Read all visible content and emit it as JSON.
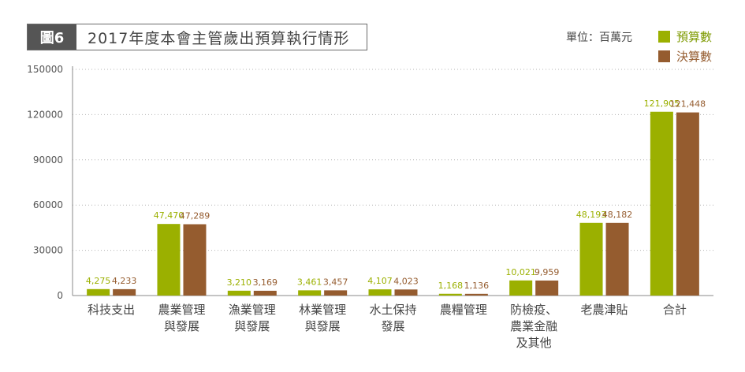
{
  "header": {
    "figure_tag": "圖6",
    "title": "2017年度本會主管歲出預算執行情形",
    "unit": "單位：百萬元"
  },
  "legend": [
    {
      "label": "預算數",
      "color": "#9bb000"
    },
    {
      "label": "決算數",
      "color": "#955c2f"
    }
  ],
  "chart_data": {
    "type": "bar",
    "title": "2017年度本會主管歲出預算執行情形",
    "ylabel": "單位：百萬元",
    "ylim": [
      0,
      150000
    ],
    "yticks": [
      "0",
      "30000",
      "60000",
      "90000",
      "120000",
      "150000"
    ],
    "grid": true,
    "legend_position": "top-right",
    "categories": [
      [
        "科技支出"
      ],
      [
        "農業管理",
        "與發展"
      ],
      [
        "漁業管理",
        "與發展"
      ],
      [
        "林業管理",
        "與發展"
      ],
      [
        "水土保持",
        "發展"
      ],
      [
        "農糧管理"
      ],
      [
        "防檢疫、",
        "農業金融",
        "及其他"
      ],
      [
        "老農津貼"
      ],
      [
        "合計"
      ]
    ],
    "series": [
      {
        "name": "預算數",
        "color": "#9bb000",
        "values": [
          4275,
          47470,
          3210,
          3461,
          4107,
          1168,
          10021,
          48193,
          121905
        ],
        "labels": [
          "4,275",
          "47,470",
          "3,210",
          "3,461",
          "4,107",
          "1,168",
          "10,021",
          "48,193",
          "121,905"
        ]
      },
      {
        "name": "決算數",
        "color": "#955c2f",
        "values": [
          4233,
          47289,
          3169,
          3457,
          4023,
          1136,
          9959,
          48182,
          121448
        ],
        "labels": [
          "4,233",
          "47,289",
          "3,169",
          "3,457",
          "4,023",
          "1,136",
          "9,959",
          "48,182",
          "121,448"
        ]
      }
    ]
  }
}
